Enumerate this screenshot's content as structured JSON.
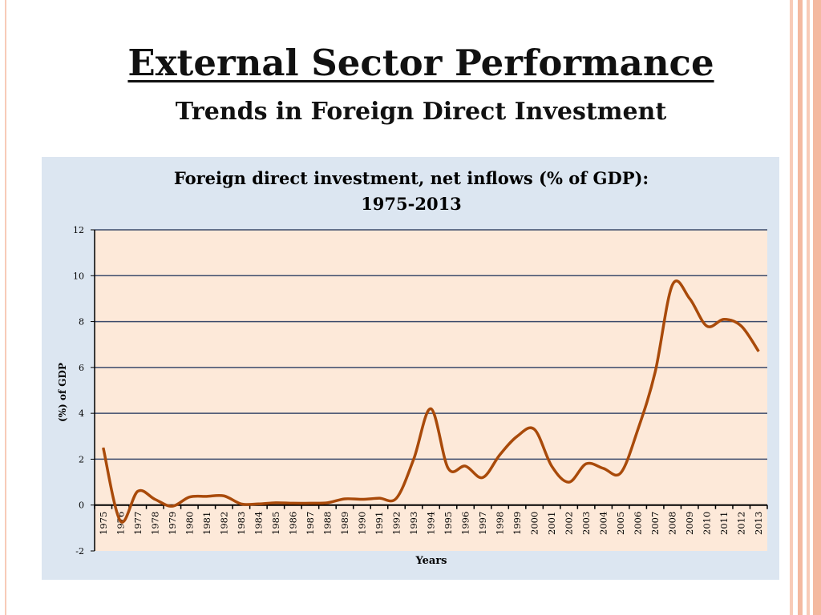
{
  "slide": {
    "title": "External Sector Performance",
    "subtitle": "Trends in Foreign Direct Investment"
  },
  "colors": {
    "line": "#a94a0a",
    "plot_bg": "#fde9d9",
    "chart_bg": "#dce6f1",
    "accent_stripes": "#f4b9a0"
  },
  "chart_data": {
    "type": "line",
    "title": "Foreign direct investment, net inflows (% of GDP):",
    "title_line2": "1975-2013",
    "xlabel": "Years",
    "ylabel": "(%) of GDP",
    "ylim": [
      -2,
      12
    ],
    "yticks": [
      -2,
      0,
      2,
      4,
      6,
      8,
      10,
      12
    ],
    "grid": true,
    "legend": "none",
    "smoothed": true,
    "categories": [
      "1975",
      "1976",
      "1977",
      "1978",
      "1979",
      "1980",
      "1981",
      "1982",
      "1983",
      "1984",
      "1985",
      "1986",
      "1987",
      "1988",
      "1989",
      "1990",
      "1991",
      "1992",
      "1993",
      "1994",
      "1995",
      "1996",
      "1997",
      "1998",
      "1999",
      "2000",
      "2001",
      "2002",
      "2003",
      "2004",
      "2005",
      "2006",
      "2007",
      "2008",
      "2009",
      "2010",
      "2011",
      "2012",
      "2013"
    ],
    "values": [
      2.5,
      -0.7,
      0.6,
      0.25,
      -0.05,
      0.35,
      0.38,
      0.4,
      0.05,
      0.05,
      0.1,
      0.08,
      0.08,
      0.1,
      0.27,
      0.25,
      0.3,
      0.3,
      2.0,
      4.2,
      1.6,
      1.7,
      1.2,
      2.2,
      3.0,
      3.3,
      1.7,
      1.0,
      1.8,
      1.6,
      1.4,
      3.3,
      5.8,
      9.6,
      9.0,
      7.8,
      8.1,
      7.8,
      6.7
    ]
  }
}
